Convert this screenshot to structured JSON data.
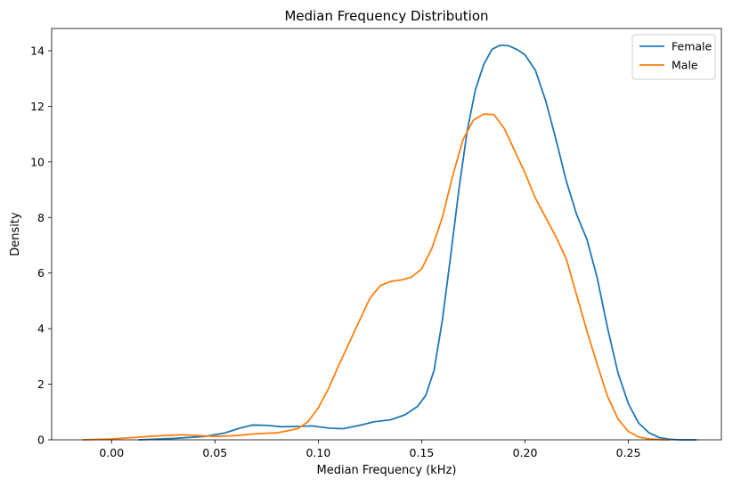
{
  "chart_data": {
    "type": "line",
    "title": "Median Frequency Distribution",
    "xlabel": "Median Frequency (kHz)",
    "ylabel": "Density",
    "xlim": [
      -0.029,
      0.295
    ],
    "ylim": [
      0,
      14.8
    ],
    "xticks": [
      0.0,
      0.05,
      0.1,
      0.15,
      0.2,
      0.25
    ],
    "xtick_labels": [
      "0.00",
      "0.05",
      "0.10",
      "0.15",
      "0.20",
      "0.25"
    ],
    "yticks": [
      0,
      2,
      4,
      6,
      8,
      10,
      12,
      14
    ],
    "ytick_labels": [
      "0",
      "2",
      "4",
      "6",
      "8",
      "10",
      "12",
      "14"
    ],
    "grid": false,
    "legend_position": "top-right",
    "series": [
      {
        "name": "Female",
        "color": "#1f77b4",
        "x": [
          0.013,
          0.03,
          0.045,
          0.055,
          0.062,
          0.068,
          0.075,
          0.082,
          0.09,
          0.097,
          0.105,
          0.112,
          0.12,
          0.127,
          0.135,
          0.142,
          0.148,
          0.152,
          0.156,
          0.16,
          0.164,
          0.168,
          0.172,
          0.176,
          0.18,
          0.184,
          0.188,
          0.192,
          0.196,
          0.2,
          0.205,
          0.21,
          0.215,
          0.22,
          0.225,
          0.23,
          0.235,
          0.24,
          0.245,
          0.25,
          0.255,
          0.26,
          0.265,
          0.27,
          0.275,
          0.283
        ],
        "y": [
          0.0,
          0.05,
          0.12,
          0.25,
          0.42,
          0.53,
          0.52,
          0.47,
          0.48,
          0.5,
          0.42,
          0.4,
          0.52,
          0.65,
          0.72,
          0.9,
          1.2,
          1.6,
          2.5,
          4.3,
          6.6,
          9.0,
          11.1,
          12.6,
          13.5,
          14.05,
          14.2,
          14.18,
          14.05,
          13.85,
          13.3,
          12.2,
          10.8,
          9.3,
          8.1,
          7.2,
          5.8,
          4.0,
          2.4,
          1.3,
          0.6,
          0.25,
          0.08,
          0.02,
          0.0,
          0.0
        ]
      },
      {
        "name": "Male",
        "color": "#ff7f0e",
        "x": [
          -0.014,
          0.0,
          0.01,
          0.02,
          0.03,
          0.035,
          0.04,
          0.05,
          0.06,
          0.07,
          0.08,
          0.09,
          0.095,
          0.1,
          0.105,
          0.11,
          0.115,
          0.12,
          0.125,
          0.13,
          0.135,
          0.14,
          0.145,
          0.15,
          0.155,
          0.16,
          0.165,
          0.17,
          0.175,
          0.18,
          0.185,
          0.19,
          0.195,
          0.2,
          0.205,
          0.21,
          0.215,
          0.22,
          0.225,
          0.23,
          0.235,
          0.24,
          0.245,
          0.25,
          0.255,
          0.26,
          0.265,
          0.27
        ],
        "y": [
          0.0,
          0.03,
          0.08,
          0.13,
          0.17,
          0.18,
          0.16,
          0.12,
          0.15,
          0.22,
          0.25,
          0.4,
          0.65,
          1.15,
          1.85,
          2.7,
          3.5,
          4.3,
          5.1,
          5.55,
          5.7,
          5.75,
          5.85,
          6.15,
          6.9,
          8.0,
          9.5,
          10.8,
          11.5,
          11.72,
          11.7,
          11.2,
          10.4,
          9.6,
          8.7,
          8.0,
          7.3,
          6.5,
          5.2,
          3.9,
          2.7,
          1.55,
          0.75,
          0.3,
          0.1,
          0.03,
          0.01,
          0.0
        ]
      }
    ]
  }
}
